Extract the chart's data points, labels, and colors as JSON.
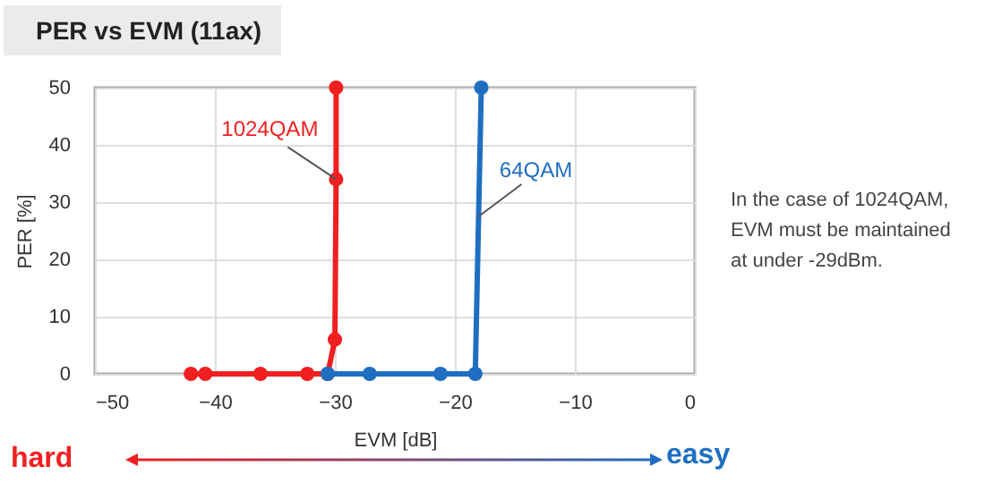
{
  "chart_data": {
    "type": "line",
    "title": "PER vs EVM (11ax)",
    "xlabel": "EVM [dB]",
    "ylabel": "PER [%]",
    "xlim": [
      -50,
      0
    ],
    "xticks": [
      -50,
      -40,
      -30,
      -20,
      -10,
      0
    ],
    "ylim": [
      0,
      50
    ],
    "yticks": [
      0,
      10,
      20,
      30,
      40,
      50
    ],
    "grid": true,
    "marker": "circle",
    "series": [
      {
        "name": "1024QAM",
        "color": "#f02020",
        "x": [
          -42.0,
          -40.8,
          -36.2,
          -32.3,
          -30.6,
          -30.0,
          -29.9,
          -29.9
        ],
        "values": [
          0,
          0,
          0,
          0,
          0,
          6,
          34,
          50
        ]
      },
      {
        "name": "64QAM",
        "color": "#1f6fc0",
        "x": [
          -30.6,
          -27.1,
          -21.2,
          -18.3,
          -17.8
        ],
        "values": [
          0,
          0,
          0,
          0,
          50
        ]
      }
    ],
    "annotations": [
      "In the case of 1024QAM, EVM must be maintained at under -29dBm.",
      "hard",
      "easy"
    ]
  }
}
